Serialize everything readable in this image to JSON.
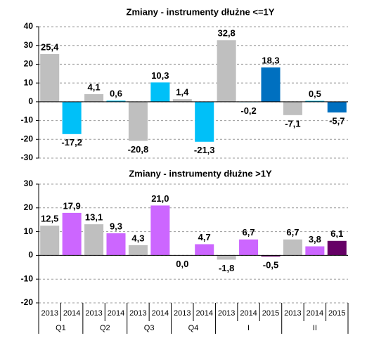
{
  "chart_data": [
    {
      "type": "bar",
      "title": "Zmiany - instrumenty dłużne <=1Y",
      "values": [
        25.4,
        -17.2,
        4.1,
        0.6,
        -20.8,
        10.3,
        1.4,
        -21.3,
        32.8,
        -0.2,
        18.3,
        -7.1,
        0.5,
        -5.7
      ],
      "value_labels": [
        "25,4",
        "-17,2",
        "4,1",
        "0,6",
        "-20,8",
        "10,3",
        "1,4",
        "-21,3",
        "32,8",
        "-0,2",
        "18,3",
        "-7,1",
        "0,5",
        "-5,7"
      ],
      "colors": [
        "#bfbfbf",
        "#00c0f8",
        "#bfbfbf",
        "#00c0f8",
        "#bfbfbf",
        "#00c0f8",
        "#bfbfbf",
        "#00c0f8",
        "#bfbfbf",
        "#00c0f8",
        "#0070c0",
        "#bfbfbf",
        "#00c0f8",
        "#0070c0"
      ],
      "ylim": [
        -30,
        40
      ],
      "yticks": [
        -30,
        -20,
        -10,
        0,
        10,
        20,
        30,
        40
      ],
      "grid": true
    },
    {
      "type": "bar",
      "title": "Zmiany - instrumenty dłużne >1Y",
      "values": [
        12.5,
        17.9,
        13.1,
        9.3,
        4.3,
        21.0,
        0.0,
        4.7,
        -1.8,
        6.7,
        -0.5,
        6.7,
        3.8,
        6.1
      ],
      "value_labels": [
        "12,5",
        "17,9",
        "13,1",
        "9,3",
        "4,3",
        "21,0",
        "0,0",
        "4,7",
        "-1,8",
        "6,7",
        "-0,5",
        "6,7",
        "3,8",
        "6,1"
      ],
      "colors": [
        "#bfbfbf",
        "#cc66ff",
        "#bfbfbf",
        "#cc66ff",
        "#bfbfbf",
        "#cc66ff",
        "#bfbfbf",
        "#cc66ff",
        "#bfbfbf",
        "#cc66ff",
        "#660066",
        "#bfbfbf",
        "#cc66ff",
        "#660066"
      ],
      "ylim": [
        -20,
        30
      ],
      "yticks": [
        -20,
        -10,
        0,
        10,
        20,
        30
      ],
      "grid": true,
      "groups": [
        {
          "label": "Q1",
          "categories": [
            "2013",
            "2014"
          ]
        },
        {
          "label": "Q2",
          "categories": [
            "2013",
            "2014"
          ]
        },
        {
          "label": "Q3",
          "categories": [
            "2013",
            "2014"
          ]
        },
        {
          "label": "Q4",
          "categories": [
            "2013",
            "2014"
          ]
        },
        {
          "label": "I",
          "categories": [
            "2013",
            "2014",
            "2015"
          ]
        },
        {
          "label": "II",
          "categories": [
            "2013",
            "2014",
            "2015"
          ]
        }
      ]
    }
  ]
}
